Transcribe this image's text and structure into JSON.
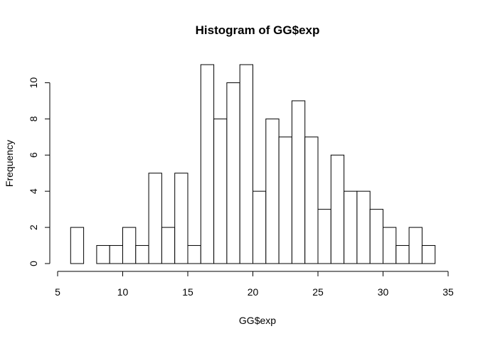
{
  "chart_data": {
    "type": "bar",
    "title": "Histogram of GG$exp",
    "xlabel": "GG$exp",
    "ylabel": "Frequency",
    "bin_width": 1,
    "bins": [
      {
        "start": 6,
        "end": 7,
        "count": 2
      },
      {
        "start": 7,
        "end": 8,
        "count": 0
      },
      {
        "start": 8,
        "end": 9,
        "count": 1
      },
      {
        "start": 9,
        "end": 10,
        "count": 1
      },
      {
        "start": 10,
        "end": 11,
        "count": 2
      },
      {
        "start": 11,
        "end": 12,
        "count": 1
      },
      {
        "start": 12,
        "end": 13,
        "count": 5
      },
      {
        "start": 13,
        "end": 14,
        "count": 2
      },
      {
        "start": 14,
        "end": 15,
        "count": 5
      },
      {
        "start": 15,
        "end": 16,
        "count": 1
      },
      {
        "start": 16,
        "end": 17,
        "count": 11
      },
      {
        "start": 17,
        "end": 18,
        "count": 8
      },
      {
        "start": 18,
        "end": 19,
        "count": 10
      },
      {
        "start": 19,
        "end": 20,
        "count": 11
      },
      {
        "start": 20,
        "end": 21,
        "count": 4
      },
      {
        "start": 21,
        "end": 22,
        "count": 8
      },
      {
        "start": 22,
        "end": 23,
        "count": 7
      },
      {
        "start": 23,
        "end": 24,
        "count": 9
      },
      {
        "start": 24,
        "end": 25,
        "count": 7
      },
      {
        "start": 25,
        "end": 26,
        "count": 3
      },
      {
        "start": 26,
        "end": 27,
        "count": 6
      },
      {
        "start": 27,
        "end": 28,
        "count": 4
      },
      {
        "start": 28,
        "end": 29,
        "count": 4
      },
      {
        "start": 29,
        "end": 30,
        "count": 3
      },
      {
        "start": 30,
        "end": 31,
        "count": 2
      },
      {
        "start": 31,
        "end": 32,
        "count": 1
      },
      {
        "start": 32,
        "end": 33,
        "count": 2
      },
      {
        "start": 33,
        "end": 34,
        "count": 1
      }
    ],
    "xlim": [
      5,
      35
    ],
    "ylim": [
      0,
      11
    ],
    "x_ticks": [
      5,
      10,
      15,
      20,
      25,
      30,
      35
    ],
    "y_ticks": [
      0,
      2,
      4,
      6,
      8,
      10
    ],
    "grid": false,
    "bar_fill": "#ffffff",
    "bar_stroke": "#000000"
  }
}
